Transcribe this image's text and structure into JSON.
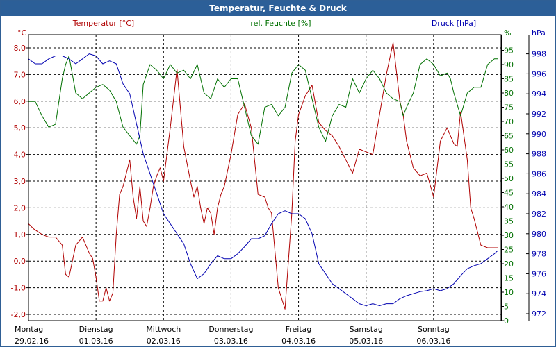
{
  "window": {
    "title": "Temperatur, Feuchte & Druck"
  },
  "chart_data": {
    "type": "line",
    "title": "Temperatur, Feuchte & Druck",
    "grid": true,
    "x_axis": {
      "labels": [
        {
          "day": "Montag",
          "date": "29.02.16"
        },
        {
          "day": "Dienstag",
          "date": "01.03.16"
        },
        {
          "day": "Mittwoch",
          "date": "02.03.16"
        },
        {
          "day": "Donnerstag",
          "date": "03.03.16"
        },
        {
          "day": "Freitag",
          "date": "04.03.16"
        },
        {
          "day": "Samstag",
          "date": "05.03.16"
        },
        {
          "day": "Sonntag",
          "date": "06.03.16"
        }
      ]
    },
    "axes": {
      "temperature": {
        "unit": "°C",
        "legend": "Temperatur [°C]",
        "color": "#b00000",
        "range": [
          -2.0,
          8.0
        ],
        "ticks": [
          "-2,0",
          "-1,0",
          "0,0",
          "1,0",
          "2,0",
          "3,0",
          "4,0",
          "5,0",
          "6,0",
          "7,0",
          "8,0"
        ]
      },
      "humidity": {
        "unit": "%",
        "legend": "rel. Feuchte [%]",
        "color": "#007000",
        "range": [
          0,
          95
        ],
        "ticks": [
          "0",
          "5",
          "10",
          "15",
          "20",
          "25",
          "30",
          "35",
          "40",
          "45",
          "50",
          "55",
          "60",
          "65",
          "70",
          "75",
          "80",
          "85",
          "90",
          "95"
        ]
      },
      "pressure": {
        "unit": "hPa",
        "legend": "Druck [hPa]",
        "color": "#0000b0",
        "range": [
          972,
          998
        ],
        "ticks": [
          "972",
          "974",
          "976",
          "978",
          "980",
          "982",
          "984",
          "986",
          "988",
          "990",
          "992",
          "994",
          "996",
          "998"
        ]
      }
    },
    "series": [
      {
        "name": "Temperatur [°C]",
        "axis": "temperature",
        "color": "#b00000",
        "x": [
          0,
          0.08,
          0.2,
          0.3,
          0.4,
          0.5,
          0.55,
          0.6,
          0.7,
          0.8,
          0.9,
          0.95,
          1.0,
          1.05,
          1.1,
          1.15,
          1.2,
          1.25,
          1.3,
          1.35,
          1.4,
          1.5,
          1.55,
          1.6,
          1.65,
          1.7,
          1.75,
          1.8,
          1.85,
          1.9,
          1.95,
          2.0,
          2.1,
          2.2,
          2.3,
          2.4,
          2.45,
          2.5,
          2.55,
          2.6,
          2.65,
          2.7,
          2.75,
          2.8,
          2.85,
          2.9,
          3.0,
          3.1,
          3.2,
          3.3,
          3.4,
          3.5,
          3.55,
          3.6,
          3.7,
          3.8,
          3.9,
          3.95,
          4.0,
          4.1,
          4.2,
          4.3,
          4.4,
          4.5,
          4.6,
          4.7,
          4.8,
          4.9,
          5.0,
          5.1,
          5.2,
          5.3,
          5.4,
          5.5,
          5.55,
          5.6,
          5.7,
          5.8,
          5.9,
          6.0,
          6.1,
          6.2,
          6.3,
          6.35,
          6.4,
          6.5,
          6.55,
          6.6,
          6.7,
          6.8,
          6.9,
          6.95
        ],
        "y": [
          1.4,
          1.2,
          1.0,
          0.9,
          0.9,
          0.6,
          -0.5,
          -0.6,
          0.6,
          0.9,
          0.3,
          0.1,
          -0.6,
          -1.5,
          -1.5,
          -1.0,
          -1.5,
          -1.2,
          1.0,
          2.5,
          2.8,
          3.8,
          2.4,
          1.6,
          2.8,
          1.5,
          1.3,
          2.0,
          2.8,
          3.2,
          3.5,
          3.0,
          5.0,
          7.2,
          4.3,
          3.0,
          2.4,
          2.8,
          2.0,
          1.4,
          2.0,
          1.8,
          1.0,
          2.0,
          2.5,
          2.8,
          4.0,
          5.5,
          5.9,
          5.0,
          2.5,
          2.4,
          2.0,
          1.8,
          -1.0,
          -1.8,
          1.8,
          4.5,
          5.5,
          6.2,
          6.6,
          5.2,
          4.9,
          4.7,
          4.3,
          3.8,
          3.3,
          4.2,
          4.1,
          4.0,
          5.5,
          7.0,
          8.2,
          6.0,
          5.5,
          4.5,
          3.5,
          3.2,
          3.3,
          2.4,
          4.5,
          5.0,
          4.4,
          4.3,
          5.6,
          3.8,
          2.0,
          1.6,
          0.6,
          0.5,
          0.5,
          0.5
        ]
      },
      {
        "name": "rel. Feuchte [%]",
        "axis": "humidity",
        "color": "#007000",
        "x": [
          0,
          0.1,
          0.2,
          0.3,
          0.4,
          0.5,
          0.55,
          0.6,
          0.7,
          0.8,
          0.9,
          1.0,
          1.1,
          1.2,
          1.3,
          1.4,
          1.5,
          1.6,
          1.65,
          1.7,
          1.8,
          1.9,
          2.0,
          2.1,
          2.2,
          2.3,
          2.4,
          2.5,
          2.6,
          2.7,
          2.8,
          2.9,
          3.0,
          3.1,
          3.2,
          3.3,
          3.4,
          3.5,
          3.6,
          3.7,
          3.8,
          3.9,
          4.0,
          4.1,
          4.2,
          4.3,
          4.4,
          4.5,
          4.6,
          4.7,
          4.8,
          4.9,
          5.0,
          5.1,
          5.2,
          5.3,
          5.4,
          5.5,
          5.55,
          5.6,
          5.7,
          5.8,
          5.9,
          6.0,
          6.1,
          6.2,
          6.25,
          6.3,
          6.4,
          6.5,
          6.6,
          6.7,
          6.8,
          6.9,
          6.95
        ],
        "y": [
          77,
          77,
          72,
          68,
          69,
          85,
          90,
          93,
          80,
          78,
          80,
          82,
          83,
          81,
          77,
          68,
          65,
          62,
          65,
          83,
          90,
          88,
          85,
          90,
          87,
          88,
          85,
          90,
          80,
          78,
          85,
          82,
          85,
          85,
          75,
          65,
          62,
          75,
          76,
          72,
          75,
          87,
          90,
          88,
          78,
          68,
          63,
          72,
          76,
          75,
          85,
          80,
          85,
          88,
          85,
          80,
          78,
          77,
          72,
          75,
          80,
          90,
          92,
          90,
          86,
          87,
          85,
          80,
          72,
          80,
          82,
          82,
          90,
          92,
          92
        ]
      },
      {
        "name": "Druck [hPa]",
        "axis": "pressure",
        "color": "#0000b0",
        "x": [
          0,
          0.1,
          0.2,
          0.3,
          0.4,
          0.5,
          0.6,
          0.7,
          0.8,
          0.9,
          1.0,
          1.1,
          1.2,
          1.3,
          1.4,
          1.5,
          1.6,
          1.7,
          1.8,
          1.9,
          2.0,
          2.1,
          2.2,
          2.3,
          2.4,
          2.5,
          2.6,
          2.7,
          2.8,
          2.9,
          3.0,
          3.1,
          3.2,
          3.3,
          3.4,
          3.5,
          3.6,
          3.7,
          3.8,
          3.9,
          4.0,
          4.1,
          4.2,
          4.3,
          4.4,
          4.5,
          4.6,
          4.7,
          4.8,
          4.9,
          5.0,
          5.1,
          5.2,
          5.3,
          5.4,
          5.5,
          5.6,
          5.7,
          5.8,
          5.9,
          6.0,
          6.1,
          6.2,
          6.3,
          6.4,
          6.5,
          6.6,
          6.7,
          6.8,
          6.9,
          6.95
        ],
        "y": [
          997.5,
          997,
          997,
          997.5,
          997.8,
          997.8,
          997.5,
          997,
          997.5,
          998,
          997.8,
          997,
          997.3,
          997,
          995,
          994,
          991,
          988,
          986,
          984,
          982,
          981,
          980,
          979,
          977,
          975.5,
          976,
          977,
          977.8,
          977.5,
          977.5,
          978,
          978.7,
          979.5,
          979.5,
          979.8,
          981,
          982,
          982.3,
          982,
          982,
          981.5,
          980,
          977,
          976,
          975,
          974.5,
          974,
          973.5,
          973,
          972.8,
          973,
          972.8,
          973,
          973,
          973.5,
          973.8,
          974,
          974.2,
          974.3,
          974.5,
          974.3,
          974.5,
          975,
          975.8,
          976.5,
          976.8,
          977,
          977.5,
          978,
          978.3
        ]
      }
    ]
  }
}
